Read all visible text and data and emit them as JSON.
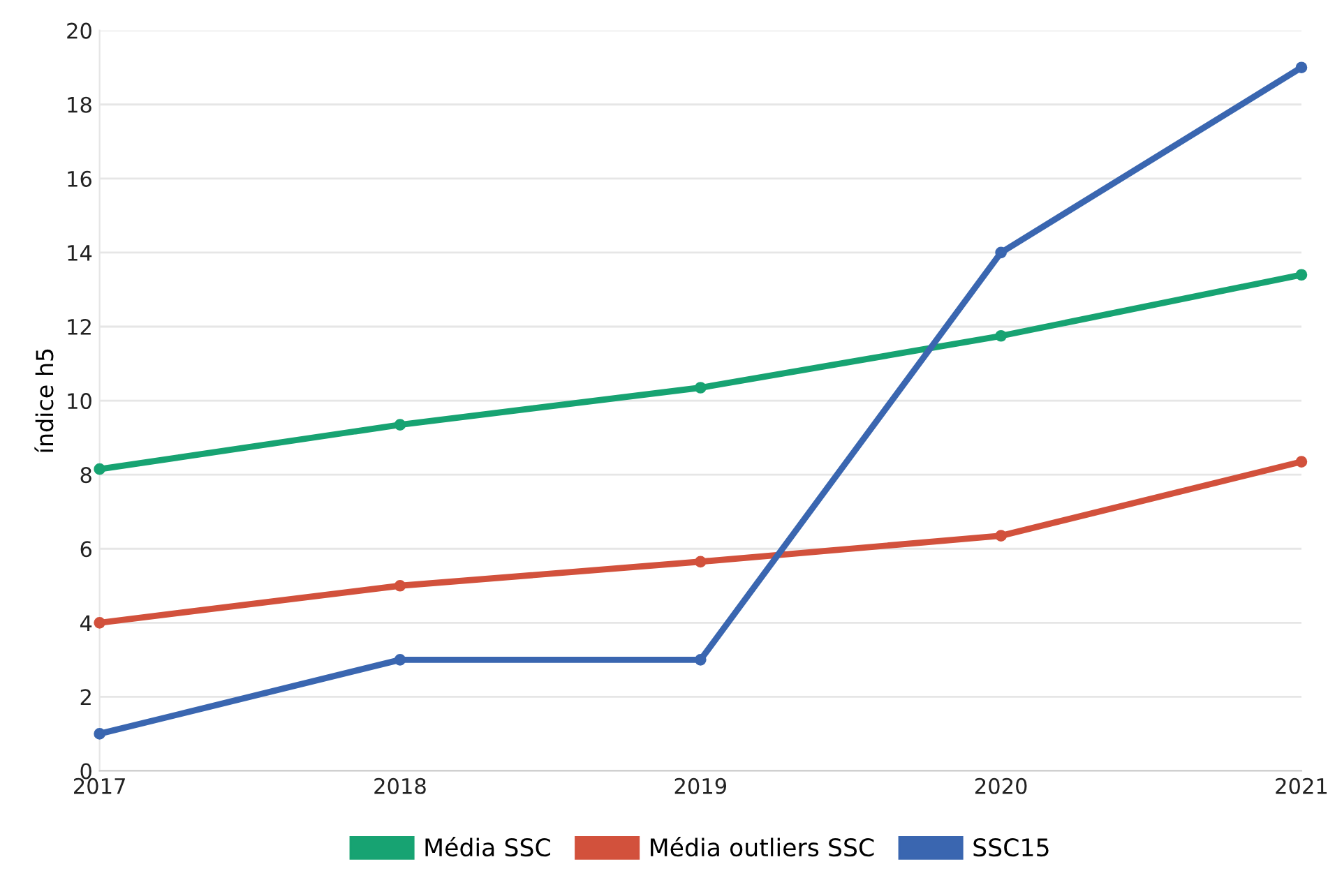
{
  "chart_data": {
    "type": "line",
    "ylabel": "índice h5",
    "x": [
      2017,
      2018,
      2019,
      2020,
      2021
    ],
    "series": [
      {
        "name": "Média SSC",
        "color": "#17a372",
        "values": [
          8.15,
          9.35,
          10.35,
          11.75,
          13.4
        ]
      },
      {
        "name": "Média outliers SSC",
        "color": "#d2513c",
        "values": [
          4,
          5,
          5.65,
          6.35,
          8.35
        ]
      },
      {
        "name": "SSC15",
        "color": "#3a66b0",
        "values": [
          1,
          3,
          3,
          14,
          19
        ]
      }
    ],
    "xlim": [
      2017,
      2021
    ],
    "xticks": [
      2017,
      2018,
      2019,
      2020,
      2021
    ],
    "ylim": [
      0,
      20
    ],
    "yticks": [
      0,
      2,
      4,
      6,
      8,
      10,
      12,
      14,
      16,
      18,
      20
    ],
    "grid": "y",
    "legend": "bottom",
    "marker": "circle",
    "line_style": "solid"
  }
}
